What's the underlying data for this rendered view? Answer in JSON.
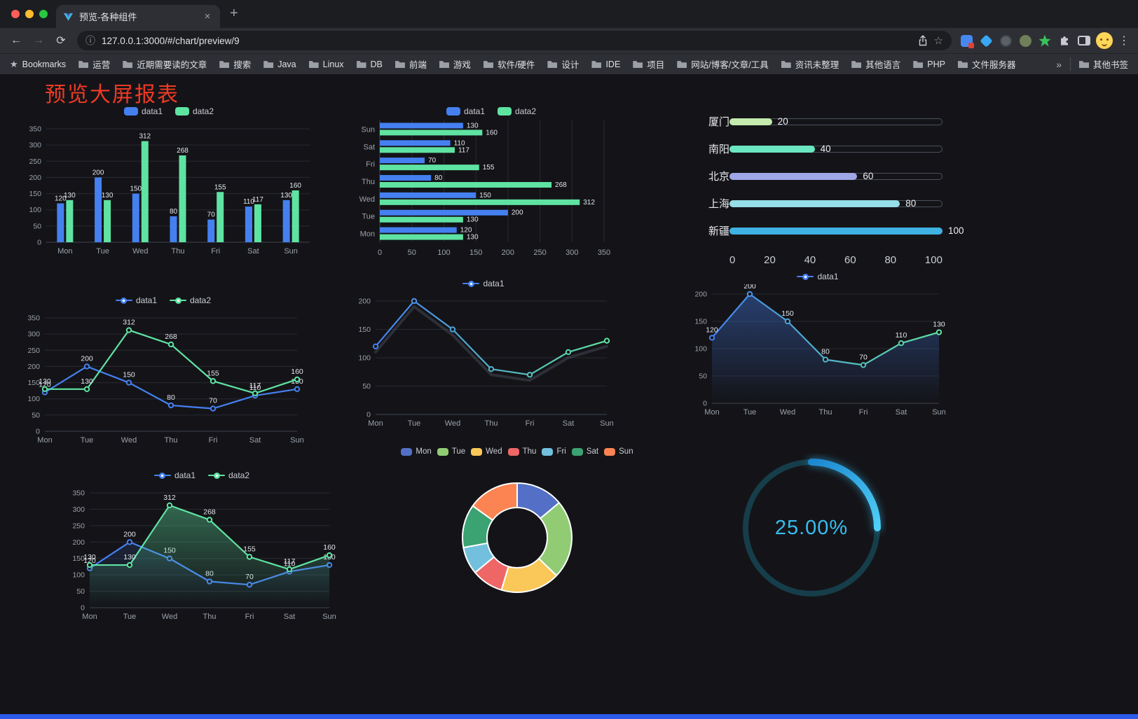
{
  "browser": {
    "tab_title": "预览-各种组件",
    "url": "127.0.0.1:3000/#/chart/preview/9",
    "bookmarks": [
      {
        "label": "Bookmarks",
        "icon": "star"
      },
      {
        "label": "运营",
        "icon": "folder"
      },
      {
        "label": "近期需要读的文章",
        "icon": "folder"
      },
      {
        "label": "搜索",
        "icon": "folder"
      },
      {
        "label": "Java",
        "icon": "folder"
      },
      {
        "label": "Linux",
        "icon": "folder"
      },
      {
        "label": "DB",
        "icon": "folder"
      },
      {
        "label": "前端",
        "icon": "folder"
      },
      {
        "label": "游戏",
        "icon": "folder"
      },
      {
        "label": "软件/硬件",
        "icon": "folder"
      },
      {
        "label": "设计",
        "icon": "folder"
      },
      {
        "label": "IDE",
        "icon": "folder"
      },
      {
        "label": "项目",
        "icon": "folder"
      },
      {
        "label": "网站/博客/文章/工具",
        "icon": "folder"
      },
      {
        "label": "资讯未整理",
        "icon": "folder"
      },
      {
        "label": "其他语言",
        "icon": "folder"
      },
      {
        "label": "PHP",
        "icon": "folder"
      },
      {
        "label": "文件服务器",
        "icon": "folder"
      }
    ],
    "bookmarks_overflow": "»",
    "other_bookmarks": "其他书签"
  },
  "icons": {
    "close": "×",
    "plus": "+",
    "back": "←",
    "forward": "→",
    "reload": "⟳",
    "info": "ⓘ",
    "star": "☆",
    "menu": "⋮"
  },
  "page": {
    "title": "预览大屏报表"
  },
  "charts": {
    "bar": {
      "type": "bar",
      "categories": [
        "Mon",
        "Tue",
        "Wed",
        "Thu",
        "Fri",
        "Sat",
        "Sun"
      ],
      "series": [
        {
          "name": "data1",
          "color": "#4580f0",
          "values": [
            120,
            200,
            150,
            80,
            70,
            110,
            130
          ]
        },
        {
          "name": "data2",
          "color": "#5fe3a2",
          "values": [
            130,
            130,
            312,
            268,
            155,
            117,
            160
          ]
        }
      ],
      "ylim": [
        0,
        350
      ],
      "yticks": [
        0,
        50,
        100,
        150,
        200,
        250,
        300,
        350
      ]
    },
    "hbar": {
      "type": "bar-horizontal",
      "categories": [
        "Mon",
        "Tue",
        "Wed",
        "Thu",
        "Fri",
        "Sat",
        "Sun"
      ],
      "series": [
        {
          "name": "data1",
          "color": "#4580f0",
          "values": [
            120,
            200,
            150,
            80,
            70,
            110,
            130
          ]
        },
        {
          "name": "data2",
          "color": "#5fe3a2",
          "values": [
            130,
            130,
            312,
            268,
            155,
            117,
            160
          ]
        }
      ],
      "xlim": [
        0,
        350
      ],
      "xticks": [
        0,
        50,
        100,
        150,
        200,
        250,
        300,
        350
      ]
    },
    "progress": {
      "type": "progress-bars",
      "max": 100,
      "rows": [
        {
          "label": "厦门",
          "value": 20,
          "color": "#c4ebad"
        },
        {
          "label": "南阳",
          "value": 40,
          "color": "#6be6c1"
        },
        {
          "label": "北京",
          "value": 60,
          "color": "#a0a7e6"
        },
        {
          "label": "上海",
          "value": 80,
          "color": "#96dee8"
        },
        {
          "label": "新疆",
          "value": 100,
          "color": "#3fb1e3"
        }
      ],
      "xticks": [
        0,
        20,
        40,
        60,
        80,
        100
      ]
    },
    "line_two": {
      "type": "line",
      "labels": true,
      "categories": [
        "Mon",
        "Tue",
        "Wed",
        "Thu",
        "Fri",
        "Sat",
        "Sun"
      ],
      "series": [
        {
          "name": "data1",
          "color": "#4580f0",
          "values": [
            120,
            200,
            150,
            80,
            70,
            110,
            130
          ]
        },
        {
          "name": "data2",
          "color": "#5fe3a2",
          "values": [
            130,
            130,
            312,
            268,
            155,
            117,
            160
          ]
        }
      ],
      "ylim": [
        0,
        350
      ],
      "yticks": [
        0,
        50,
        100,
        150,
        200,
        250,
        300,
        350
      ]
    },
    "line_single": {
      "type": "line",
      "labels": false,
      "gradient": true,
      "echo": true,
      "categories": [
        "Mon",
        "Tue",
        "Wed",
        "Thu",
        "Fri",
        "Sat",
        "Sun"
      ],
      "series": [
        {
          "name": "data1",
          "color": "#4580f0",
          "color2": "#5fe3a2",
          "values": [
            120,
            200,
            150,
            80,
            70,
            110,
            130
          ]
        }
      ],
      "ylim": [
        0,
        200
      ],
      "yticks": [
        0,
        50,
        100,
        150,
        200
      ]
    },
    "line_area": {
      "type": "line",
      "labels": true,
      "gradient": true,
      "categories": [
        "Mon",
        "Tue",
        "Wed",
        "Thu",
        "Fri",
        "Sat",
        "Sun"
      ],
      "series": [
        {
          "name": "data1",
          "color": "#4580f0",
          "color2": "#5fe3a2",
          "area": 0.4,
          "values": [
            120,
            200,
            150,
            80,
            70,
            110,
            130
          ]
        }
      ],
      "ylim": [
        0,
        200
      ],
      "yticks": [
        0,
        50,
        100,
        150,
        200
      ]
    },
    "line_two_area": {
      "type": "line",
      "labels": true,
      "categories": [
        "Mon",
        "Tue",
        "Wed",
        "Thu",
        "Fri",
        "Sat",
        "Sun"
      ],
      "series": [
        {
          "name": "data1",
          "color": "#4580f0",
          "area": 0.15,
          "values": [
            120,
            200,
            150,
            80,
            70,
            110,
            130
          ]
        },
        {
          "name": "data2",
          "color": "#5fe3a2",
          "area": 0.4,
          "values": [
            130,
            130,
            312,
            268,
            155,
            117,
            160
          ]
        }
      ],
      "ylim": [
        0,
        350
      ],
      "yticks": [
        0,
        50,
        100,
        150,
        200,
        250,
        300,
        350
      ]
    },
    "pie": {
      "type": "pie",
      "legend": [
        "Mon",
        "Tue",
        "Wed",
        "Thu",
        "Fri",
        "Sat",
        "Sun"
      ],
      "values": [
        120,
        200,
        150,
        80,
        70,
        110,
        130
      ],
      "colors": [
        "#5470c6",
        "#91cc75",
        "#fac858",
        "#ee6666",
        "#73c0de",
        "#3ba272",
        "#fc8452"
      ]
    },
    "gauge": {
      "type": "gauge",
      "value_label": "25.00%",
      "percent": 25,
      "color": "#35bdf0",
      "track": "#163d4a"
    }
  }
}
